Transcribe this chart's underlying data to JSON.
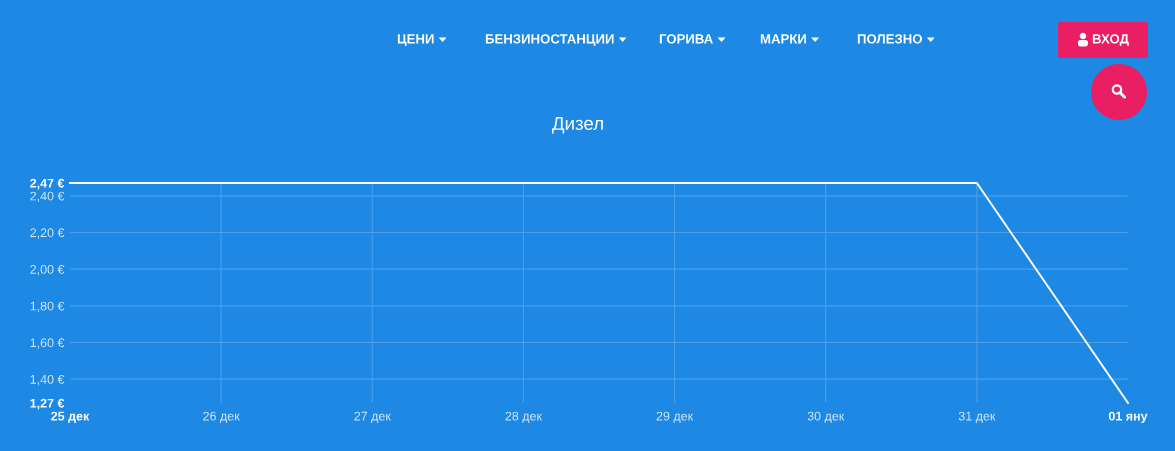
{
  "chart_data": {
    "type": "line",
    "title": "Дизел",
    "categories": [
      "25 дек",
      "26 дек",
      "27 дек",
      "28 дек",
      "29 дек",
      "30 дек",
      "31 дек",
      "01 яну"
    ],
    "series": [
      {
        "color": "#ffffff",
        "values": [
          2.47,
          2.47,
          2.47,
          2.47,
          2.47,
          2.47,
          2.47,
          1.27
        ]
      }
    ],
    "ylim": [
      1.27,
      2.47
    ],
    "yticks": [
      {
        "value": 1.27,
        "label": "1,27 €"
      },
      {
        "value": 1.4,
        "label": "1,40 €"
      },
      {
        "value": 1.6,
        "label": "1,60 €"
      },
      {
        "value": 1.8,
        "label": "1,80 €"
      },
      {
        "value": 2.0,
        "label": "2,00 €"
      },
      {
        "value": 2.2,
        "label": "2,20 €"
      },
      {
        "value": 2.4,
        "label": "2,40 €"
      },
      {
        "value": 2.47,
        "label": "2,47 €"
      }
    ],
    "grid": true,
    "line_style": "solid",
    "annotations": [
      "ЦЕНИ",
      "БЕНЗИНОСТАНЦИИ",
      "ГОРИВА",
      "МАРКИ",
      "ПОЛЕЗНО",
      "ВХОД"
    ]
  }
}
